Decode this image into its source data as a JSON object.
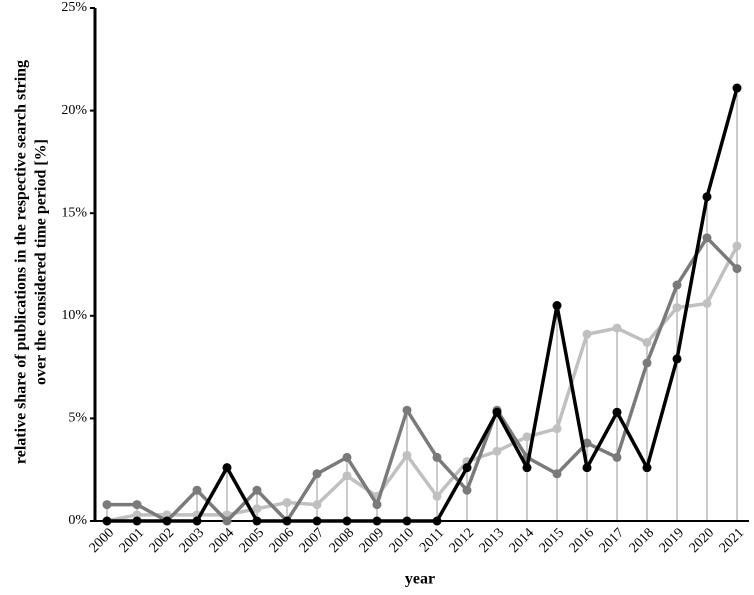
{
  "chart_data": {
    "type": "line",
    "xlabel": "year",
    "ylabel": [
      "relative share of publications in the respective search string",
      "over the considered time period [%]"
    ],
    "categories": [
      "2000",
      "2001",
      "2002",
      "2003",
      "2004",
      "2005",
      "2006",
      "2007",
      "2008",
      "2009",
      "2010",
      "2011",
      "2012",
      "2013",
      "2014",
      "2015",
      "2016",
      "2017",
      "2018",
      "2019",
      "2020",
      "2021"
    ],
    "series": [
      {
        "color": "#c0c0c0",
        "values": [
          0,
          0.3,
          0.3,
          0.3,
          0.3,
          0.6,
          0.9,
          0.8,
          2.2,
          1.2,
          3.2,
          1.2,
          2.9,
          3.4,
          4.1,
          4.5,
          9.1,
          9.4,
          8.7,
          10.4,
          10.6,
          13.4
        ]
      },
      {
        "color": "#7a7a7a",
        "values": [
          0.8,
          0.8,
          0,
          1.5,
          0,
          1.5,
          0,
          2.3,
          3.1,
          0.8,
          5.4,
          3.1,
          1.5,
          5.4,
          3.1,
          2.3,
          3.8,
          3.1,
          7.7,
          11.5,
          13.8,
          12.3
        ]
      },
      {
        "color": "#000000",
        "values": [
          0,
          0,
          0,
          0,
          2.6,
          0,
          0,
          0,
          0,
          0,
          0,
          0,
          2.6,
          5.3,
          2.6,
          10.5,
          2.6,
          5.3,
          2.6,
          7.9,
          15.8,
          21.1
        ]
      }
    ],
    "ylim": [
      0,
      25
    ],
    "yticks": [
      {
        "value": 0,
        "label": "0%"
      },
      {
        "value": 5,
        "label": "5%"
      },
      {
        "value": 10,
        "label": "10%"
      },
      {
        "value": 15,
        "label": "15%"
      },
      {
        "value": 20,
        "label": "20%"
      },
      {
        "value": 25,
        "label": "25%"
      }
    ],
    "drop_lines": true
  }
}
